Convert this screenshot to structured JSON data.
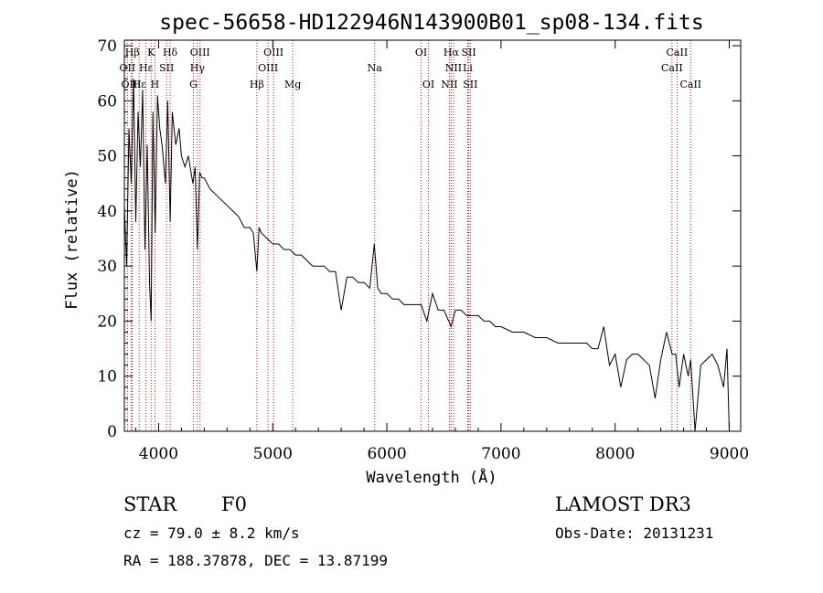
{
  "chart_data": {
    "type": "line",
    "title": "spec-56658-HD122946N143900B01_sp08-134.fits",
    "xlabel": "Wavelength (Å)",
    "ylabel": "Flux (relative)",
    "xlim": [
      3700,
      9100
    ],
    "ylim": [
      0,
      71
    ],
    "xticks": [
      4000,
      5000,
      6000,
      7000,
      8000,
      9000
    ],
    "yticks": [
      0,
      10,
      20,
      30,
      40,
      50,
      60,
      70
    ],
    "series": [
      {
        "name": "flux",
        "x": [
          3700,
          3720,
          3740,
          3760,
          3780,
          3800,
          3820,
          3840,
          3860,
          3880,
          3900,
          3920,
          3935,
          3950,
          3970,
          3990,
          4010,
          4030,
          4060,
          4080,
          4101,
          4120,
          4150,
          4180,
          4200,
          4230,
          4260,
          4300,
          4320,
          4340,
          4360,
          4380,
          4400,
          4450,
          4500,
          4550,
          4600,
          4650,
          4700,
          4750,
          4800,
          4830,
          4861,
          4880,
          4900,
          4950,
          5000,
          5050,
          5100,
          5150,
          5200,
          5250,
          5300,
          5350,
          5400,
          5450,
          5500,
          5550,
          5600,
          5650,
          5700,
          5750,
          5800,
          5850,
          5890,
          5920,
          5950,
          6000,
          6050,
          6100,
          6150,
          6200,
          6250,
          6300,
          6350,
          6400,
          6450,
          6500,
          6563,
          6600,
          6650,
          6700,
          6750,
          6800,
          6850,
          6900,
          6950,
          7000,
          7100,
          7200,
          7300,
          7400,
          7500,
          7600,
          7700,
          7750,
          7800,
          7850,
          7900,
          7950,
          8000,
          8050,
          8100,
          8150,
          8200,
          8300,
          8350,
          8400,
          8450,
          8500,
          8530,
          8560,
          8600,
          8640,
          8662,
          8700,
          8750,
          8800,
          8850,
          8900,
          8950,
          8980,
          9000
        ],
        "values": [
          41,
          30,
          55,
          45,
          64,
          38,
          58,
          48,
          62,
          33,
          52,
          27,
          20,
          58,
          36,
          61,
          55,
          52,
          45,
          60,
          38,
          58,
          52,
          55,
          50,
          48,
          50,
          45,
          48,
          33,
          47,
          46,
          46,
          44,
          43,
          42,
          41,
          40,
          39,
          37,
          37,
          36,
          29,
          37,
          36,
          35,
          34,
          34,
          33,
          33,
          32,
          32,
          31,
          30,
          30,
          30,
          29,
          29,
          22,
          28,
          28,
          27,
          27,
          26,
          34,
          26,
          25,
          25,
          24,
          24,
          23,
          23,
          23,
          23,
          20,
          25,
          22,
          22,
          19,
          22,
          22,
          21,
          21,
          21,
          20,
          20,
          19,
          19,
          18,
          18,
          17,
          17,
          16,
          16,
          16,
          16,
          15,
          15,
          19,
          12,
          14,
          8,
          13,
          14,
          14,
          12,
          6,
          13,
          18,
          14,
          14,
          8,
          14,
          10,
          13,
          0,
          12,
          13,
          14,
          12,
          8,
          15,
          0
        ]
      }
    ],
    "lines": [
      {
        "label": "Hβ",
        "wave": 3770,
        "row": 0
      },
      {
        "label": "K",
        "wave": 3934,
        "row": 0
      },
      {
        "label": "Hδ",
        "wave": 4101,
        "row": 0
      },
      {
        "label": "OIII",
        "wave": 4363,
        "row": 0
      },
      {
        "label": "OIII",
        "wave": 5007,
        "row": 0
      },
      {
        "label": "OI",
        "wave": 6300,
        "row": 0
      },
      {
        "label": "Hα",
        "wave": 6563,
        "row": 0
      },
      {
        "label": "SII",
        "wave": 6717,
        "row": 0
      },
      {
        "label": "CaII",
        "wave": 8542,
        "row": 0
      },
      {
        "label": "OII",
        "wave": 3727,
        "row": 1
      },
      {
        "label": "Hε",
        "wave": 3889,
        "row": 1
      },
      {
        "label": "SII",
        "wave": 4070,
        "row": 1
      },
      {
        "label": "Hγ",
        "wave": 4340,
        "row": 1
      },
      {
        "label": "OIII",
        "wave": 4959,
        "row": 1
      },
      {
        "label": "Na",
        "wave": 5893,
        "row": 1
      },
      {
        "label": "NII",
        "wave": 6584,
        "row": 1
      },
      {
        "label": "Li",
        "wave": 6708,
        "row": 1
      },
      {
        "label": "CaII",
        "wave": 8498,
        "row": 1
      },
      {
        "label": "OIII",
        "wave": 3760,
        "row": 2
      },
      {
        "label": "Hε",
        "wave": 3830,
        "row": 2
      },
      {
        "label": "H",
        "wave": 3968,
        "row": 2
      },
      {
        "label": "G",
        "wave": 4305,
        "row": 2
      },
      {
        "label": "Hβ",
        "wave": 4861,
        "row": 2
      },
      {
        "label": "Mg",
        "wave": 5175,
        "row": 2
      },
      {
        "label": "OI",
        "wave": 6364,
        "row": 2
      },
      {
        "label": "NII",
        "wave": 6548,
        "row": 2
      },
      {
        "label": "SII",
        "wave": 6731,
        "row": 2
      },
      {
        "label": "CaII",
        "wave": 8662,
        "row": 2
      }
    ]
  },
  "info": {
    "object_type": "STAR",
    "subclass": "F0",
    "survey": "LAMOST DR3",
    "cz_line": "cz = 79.0 ± 8.2 km/s",
    "obs_date_line": "Obs-Date: 20131231",
    "radec_line": "RA = 188.37878, DEC =  13.87199"
  },
  "colors": {
    "line_marker": "#d01010",
    "spectrum": "#000000",
    "axes": "#000000"
  }
}
